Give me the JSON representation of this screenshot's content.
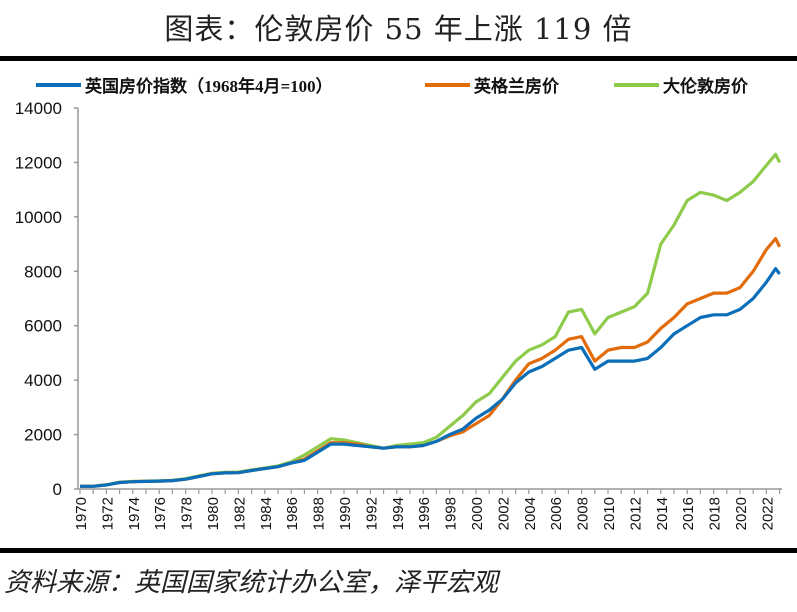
{
  "title": "图表：伦敦房价 55 年上涨 119 倍",
  "source": "资料来源：英国国家统计办公室，泽平宏观",
  "chart_data": {
    "type": "line",
    "title": "图表：伦敦房价 55 年上涨 119 倍",
    "xlabel": "",
    "ylabel": "",
    "ylim": [
      0,
      14000
    ],
    "xlim": [
      1970,
      2023.3
    ],
    "yticks": [
      "0",
      "2000",
      "4000",
      "6000",
      "8000",
      "10000",
      "12000",
      "14000"
    ],
    "xticks": [
      "1970",
      "1972",
      "1974",
      "1976",
      "1978",
      "1980",
      "1982",
      "1984",
      "1986",
      "1988",
      "1990",
      "1992",
      "1994",
      "1996",
      "1998",
      "2000",
      "2002",
      "2004",
      "2006",
      "2008",
      "2010",
      "2012",
      "2014",
      "2016",
      "2018",
      "2020",
      "2022"
    ],
    "grid": false,
    "legend_position": "top",
    "x": [
      1970,
      1971,
      1972,
      1973,
      1974,
      1975,
      1976,
      1977,
      1978,
      1979,
      1980,
      1981,
      1982,
      1983,
      1984,
      1985,
      1986,
      1987,
      1988,
      1989,
      1990,
      1991,
      1992,
      1993,
      1994,
      1995,
      1996,
      1997,
      1998,
      1999,
      2000,
      2001,
      2002,
      2003,
      2004,
      2005,
      2006,
      2007,
      2008,
      2009,
      2010,
      2011,
      2012,
      2013,
      2014,
      2015,
      2016,
      2017,
      2018,
      2019,
      2020,
      2021,
      2022,
      2022.7,
      2023
    ],
    "series": [
      {
        "name": "英国房价指数（1968年4月=100）",
        "color": "#0B6EB8",
        "values": [
          100,
          100,
          150,
          240,
          270,
          280,
          290,
          310,
          360,
          460,
          560,
          590,
          600,
          680,
          750,
          820,
          950,
          1050,
          1350,
          1650,
          1650,
          1600,
          1550,
          1500,
          1550,
          1550,
          1600,
          1750,
          2000,
          2200,
          2600,
          2900,
          3300,
          3900,
          4300,
          4500,
          4800,
          5100,
          5200,
          4400,
          4700,
          4700,
          4700,
          4800,
          5200,
          5700,
          6000,
          6300,
          6400,
          6400,
          6600,
          7000,
          7600,
          8100,
          7900
        ]
      },
      {
        "name": "英格兰房价",
        "color": "#E36C0A",
        "values": [
          100,
          100,
          150,
          240,
          270,
          280,
          290,
          310,
          360,
          460,
          560,
          590,
          600,
          680,
          750,
          820,
          950,
          1100,
          1400,
          1700,
          1700,
          1650,
          1550,
          1500,
          1550,
          1550,
          1600,
          1750,
          1950,
          2100,
          2400,
          2700,
          3300,
          4000,
          4600,
          4800,
          5100,
          5500,
          5600,
          4700,
          5100,
          5200,
          5200,
          5400,
          5900,
          6300,
          6800,
          7000,
          7200,
          7200,
          7400,
          8000,
          8800,
          9200,
          8900
        ]
      },
      {
        "name": "大伦敦房价",
        "color": "#8DCB4B",
        "values": [
          100,
          100,
          150,
          250,
          280,
          290,
          300,
          320,
          380,
          480,
          580,
          610,
          620,
          700,
          770,
          850,
          1000,
          1250,
          1550,
          1850,
          1800,
          1700,
          1600,
          1500,
          1600,
          1650,
          1700,
          1900,
          2300,
          2700,
          3200,
          3500,
          4100,
          4700,
          5100,
          5300,
          5600,
          6500,
          6600,
          5700,
          6300,
          6500,
          6700,
          7200,
          9000,
          9700,
          10600,
          10900,
          10800,
          10600,
          10900,
          11300,
          11900,
          12300,
          12000
        ]
      }
    ]
  }
}
